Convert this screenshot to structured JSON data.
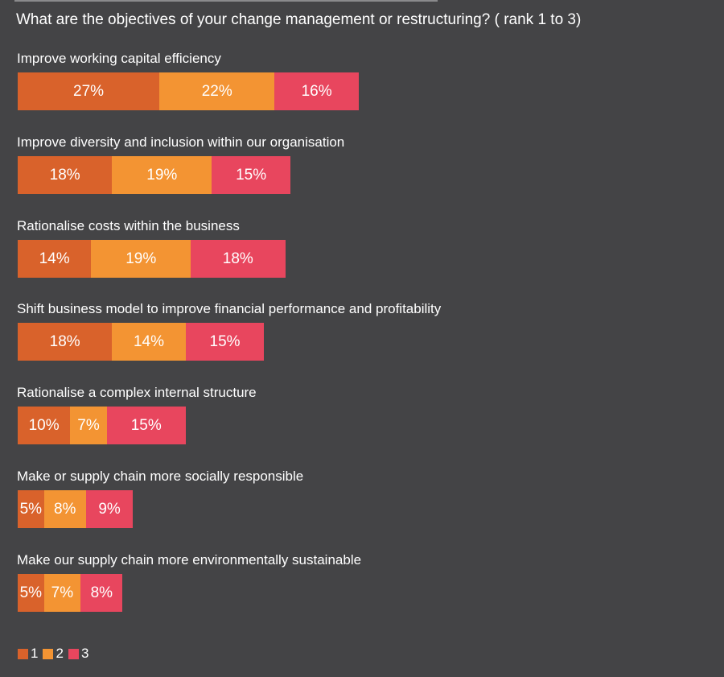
{
  "colors": {
    "rank1": "#d9622b",
    "rank2": "#f39433",
    "rank3": "#e8465e",
    "background": "#444446"
  },
  "chart_data": {
    "type": "bar",
    "orientation": "horizontal",
    "stacked": true,
    "title": "What are the objectives of your change management or restructuring? ( rank 1 to 3)",
    "categories": [
      "Improve working capital efficiency",
      "Improve diversity and inclusion within our organisation",
      "Rationalise costs within the business",
      "Shift business model to improve financial performance and profitability",
      "Rationalise a complex internal structure",
      "Make or supply chain more socially responsible",
      "Make our supply chain more environmentally sustainable"
    ],
    "series": [
      {
        "name": "1",
        "values": [
          27,
          18,
          14,
          18,
          10,
          5,
          5
        ],
        "labels": [
          "27%",
          "18%",
          "14%",
          "18%",
          "10%",
          "5%",
          "5%"
        ]
      },
      {
        "name": "2",
        "values": [
          22,
          19,
          19,
          14,
          7,
          8,
          7
        ],
        "labels": [
          "22%",
          "19%",
          "19%",
          "14%",
          "7%",
          "8%",
          "7%"
        ]
      },
      {
        "name": "3",
        "values": [
          16,
          15,
          18,
          15,
          15,
          9,
          8
        ],
        "labels": [
          "16%",
          "15%",
          "18%",
          "15%",
          "15%",
          "9%",
          "8%"
        ]
      }
    ],
    "legend_position": "bottom-left",
    "grid": false
  }
}
